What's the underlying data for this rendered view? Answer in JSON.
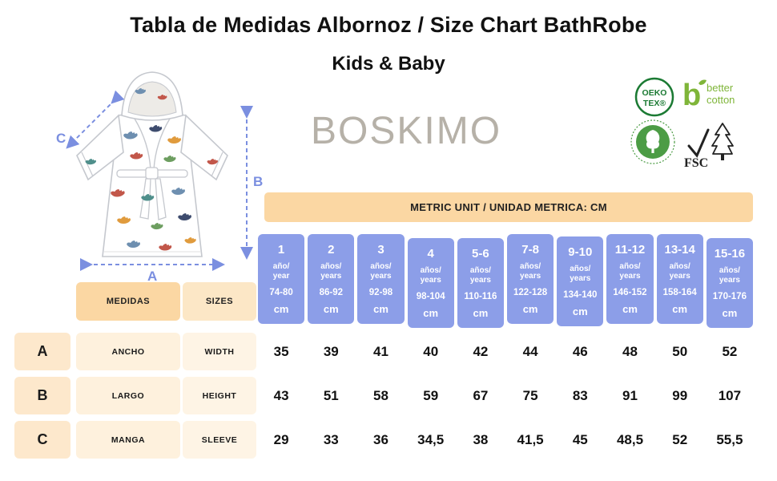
{
  "title": "Tabla de Medidas Albornoz / Size Chart BathRobe",
  "subtitle": "Kids & Baby",
  "brand": "BOSKIMO",
  "badges": {
    "oeko_tex": {
      "line1": "OEKO",
      "line2": "TEX®"
    },
    "better_cotton": {
      "letter": "b",
      "line1": "better",
      "line2": "cotton"
    },
    "fsc": {
      "label": "FSC"
    }
  },
  "diagram": {
    "label_a": "A",
    "label_b": "B",
    "label_c": "C"
  },
  "table": {
    "metric_header": "METRIC UNIT / UNIDAD METRICA: CM",
    "medidas_header": "MEDIDAS",
    "sizes_header": "SIZES",
    "unit": "cm",
    "size_columns": [
      {
        "size": "1",
        "age1": "año/",
        "age2": "year",
        "range": "74-80"
      },
      {
        "size": "2",
        "age1": "años/",
        "age2": "years",
        "range": "86-92"
      },
      {
        "size": "3",
        "age1": "años/",
        "age2": "years",
        "range": "92-98"
      },
      {
        "size": "4",
        "age1": "años/",
        "age2": "years",
        "range": "98-104"
      },
      {
        "size": "5-6",
        "age1": "años/",
        "age2": "years",
        "range": "110-116"
      },
      {
        "size": "7-8",
        "age1": "años/",
        "age2": "years",
        "range": "122-128"
      },
      {
        "size": "9-10",
        "age1": "años/",
        "age2": "years",
        "range": "134-140"
      },
      {
        "size": "11-12",
        "age1": "años/",
        "age2": "years",
        "range": "146-152"
      },
      {
        "size": "13-14",
        "age1": "años/",
        "age2": "years",
        "range": "158-164"
      },
      {
        "size": "15-16",
        "age1": "años/",
        "age2": "years",
        "range": "170-176"
      }
    ],
    "rows": [
      {
        "letter": "A",
        "medida": "ANCHO",
        "size_en": "WIDTH",
        "values": [
          "35",
          "39",
          "41",
          "40",
          "42",
          "44",
          "46",
          "48",
          "50",
          "52"
        ]
      },
      {
        "letter": "B",
        "medida": "LARGO",
        "size_en": "HEIGHT",
        "values": [
          "43",
          "51",
          "58",
          "59",
          "67",
          "75",
          "83",
          "91",
          "99",
          "107"
        ]
      },
      {
        "letter": "C",
        "medida": "MANGA",
        "size_en": "SLEEVE",
        "values": [
          "29",
          "33",
          "36",
          "34,5",
          "38",
          "41,5",
          "45",
          "48,5",
          "52",
          "55,5"
        ]
      }
    ]
  },
  "colors": {
    "peach": "#FBD7A3",
    "peach_light": "#FDE8CC",
    "cream": "#FEF3E2",
    "periwinkle": "#8C9EE8",
    "annotation_blue": "#7B8FE0"
  },
  "chart_data": {
    "type": "table",
    "title": "Tabla de Medidas Albornoz / Size Chart BathRobe — Kids & Baby",
    "unit": "cm",
    "columns": [
      "1 año (74-80 cm)",
      "2 años (86-92 cm)",
      "3 años (92-98 cm)",
      "4 años (98-104 cm)",
      "5-6 años (110-116 cm)",
      "7-8 años (122-128 cm)",
      "9-10 años (134-140 cm)",
      "11-12 años (146-152 cm)",
      "13-14 años (158-164 cm)",
      "15-16 años (170-176 cm)"
    ],
    "rows": [
      {
        "measure": "A — ANCHO / WIDTH",
        "values": [
          35,
          39,
          41,
          40,
          42,
          44,
          46,
          48,
          50,
          52
        ]
      },
      {
        "measure": "B — LARGO / HEIGHT",
        "values": [
          43,
          51,
          58,
          59,
          67,
          75,
          83,
          91,
          99,
          107
        ]
      },
      {
        "measure": "C — MANGA / SLEEVE",
        "values": [
          29,
          33,
          36,
          34.5,
          38,
          41.5,
          45,
          48.5,
          52,
          55.5
        ]
      }
    ]
  }
}
